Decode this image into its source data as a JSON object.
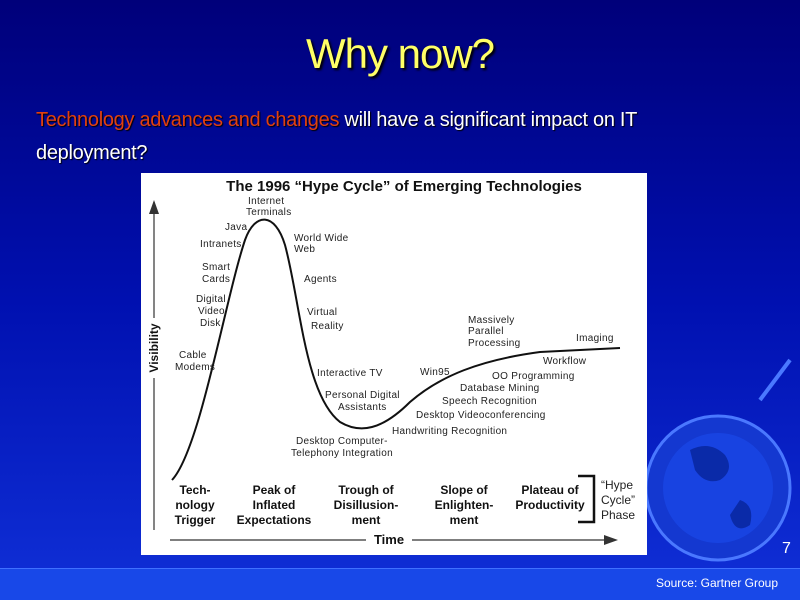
{
  "slide": {
    "title": "Why now?",
    "subtitle_highlight": "Technology advances and changes",
    "subtitle_rest": "will have a significant impact on IT deployment?",
    "page_number": "7",
    "source": "Source: Gartner Group"
  },
  "diagram": {
    "title": "The 1996 “Hype Cycle” of Emerging Technologies",
    "y_axis": "Visibility",
    "x_axis": "Time",
    "labels": [
      [
        "Internet",
        "Terminals"
      ],
      [
        "Java"
      ],
      [
        "Intranets"
      ],
      [
        "World Wide",
        "Web"
      ],
      [
        "Smart",
        "Cards"
      ],
      [
        "Agents"
      ],
      [
        "Digital",
        "Video",
        "Disk"
      ],
      [
        "Virtual",
        "Reality"
      ],
      [
        "Massively",
        "Parallel",
        "Processing"
      ],
      [
        "Imaging"
      ],
      [
        "Cable",
        "Modems"
      ],
      [
        "Workflow"
      ],
      [
        "Interactive TV"
      ],
      [
        "Win95"
      ],
      [
        "OO Programming"
      ],
      [
        "Database Mining"
      ],
      [
        "Personal Digital",
        "Assistants"
      ],
      [
        "Speech Recognition"
      ],
      [
        "Desktop Videoconferencing"
      ],
      [
        "Handwriting Recognition"
      ],
      [
        "Desktop Computer-",
        "Telephony Integration"
      ]
    ],
    "phases": [
      [
        "Tech-",
        "nology",
        "Trigger"
      ],
      [
        "Peak of",
        "Inflated",
        "Expectations"
      ],
      [
        "Trough of",
        "Disillusion-",
        "ment"
      ],
      [
        "Slope of",
        "Enlighten-",
        "ment"
      ],
      [
        "Plateau of",
        "Productivity"
      ]
    ],
    "phase_legend": [
      "“Hype",
      "Cycle”",
      "Phase"
    ]
  }
}
